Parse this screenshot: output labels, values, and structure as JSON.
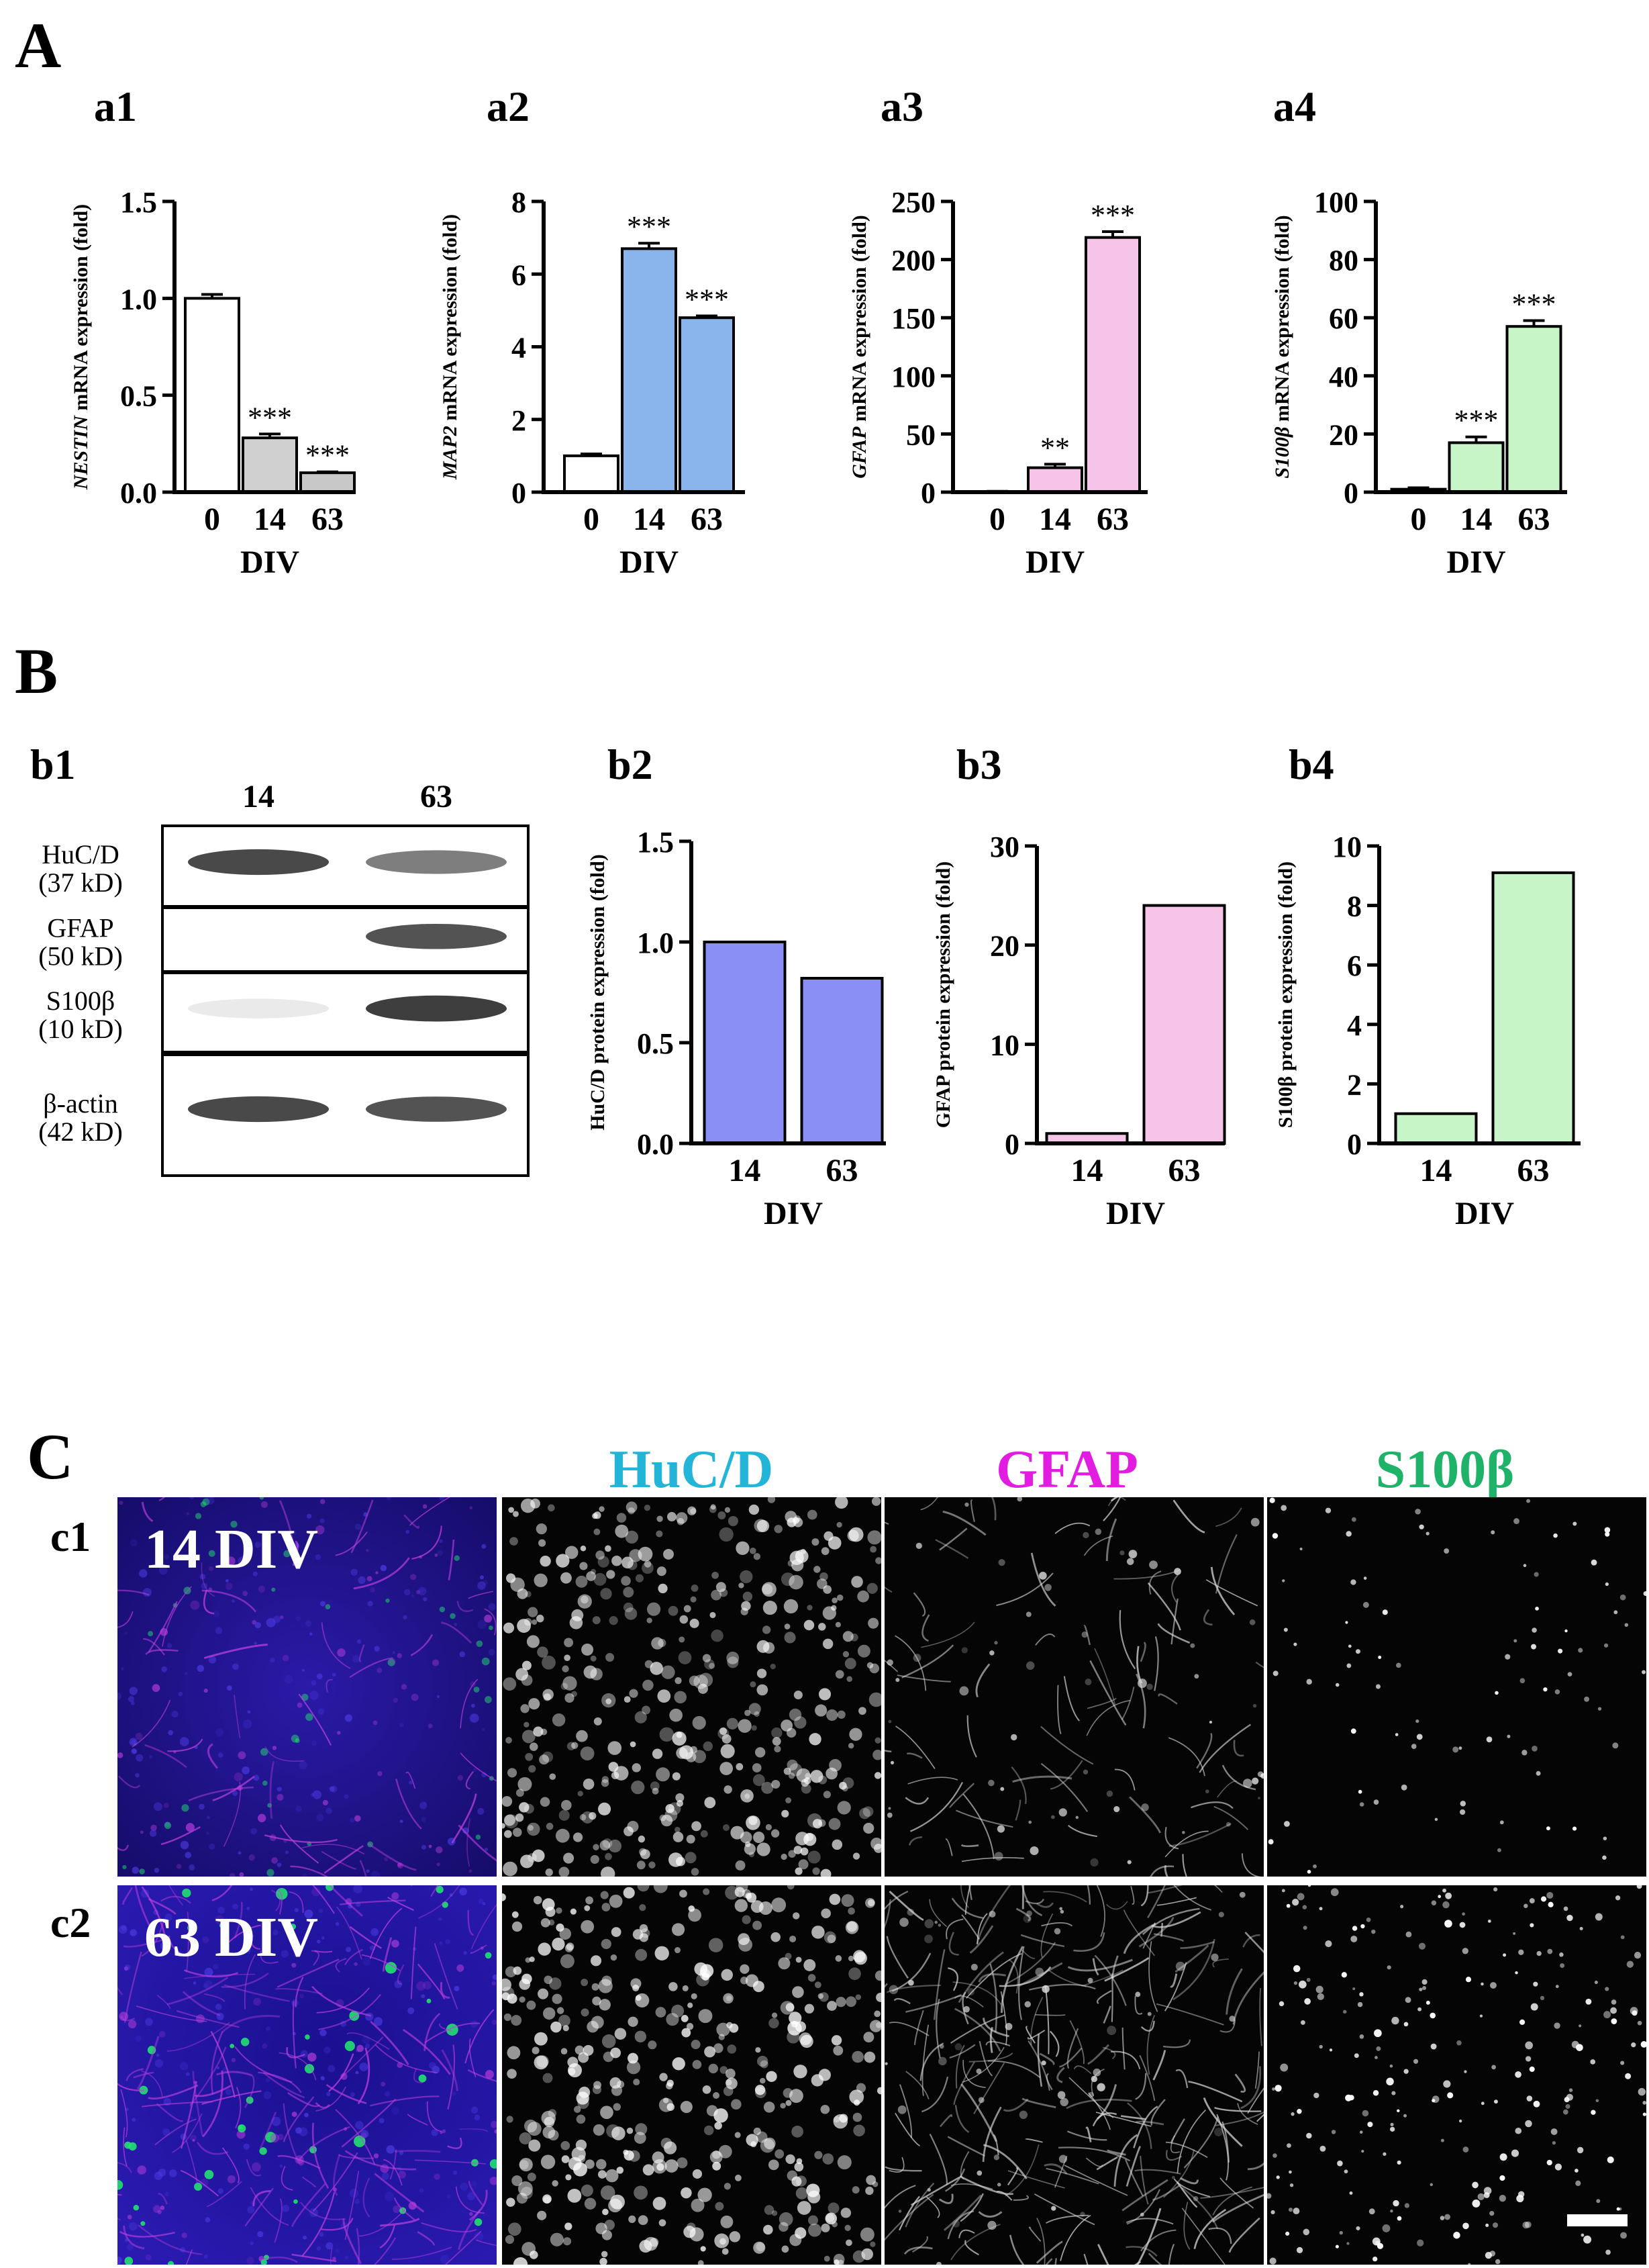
{
  "panels": {
    "A": "A",
    "B": "B",
    "C": "C",
    "a1": "a1",
    "a2": "a2",
    "a3": "a3",
    "a4": "a4",
    "b1": "b1",
    "b2": "b2",
    "b3": "b3",
    "b4": "b4",
    "c1": "c1",
    "c2": "c2"
  },
  "chart_data": [
    {
      "id": "a1",
      "type": "bar",
      "categories": [
        "0",
        "14",
        "63"
      ],
      "values": [
        1.0,
        0.28,
        0.1
      ],
      "errors": [
        0.02,
        0.02,
        0.005
      ],
      "sig": [
        "",
        "***",
        "***"
      ],
      "colors": [
        "#ffffff",
        "#d0d0d0",
        "#c8c8c8"
      ],
      "ylabel_italic": "NESTIN",
      "ylabel": " mRNA expression (fold)",
      "xlabel": "DIV",
      "ylim": [
        0,
        1.5
      ],
      "ytick_labels": [
        "0.0",
        "0.5",
        "1.0",
        "1.5"
      ],
      "yticks": [
        0,
        0.5,
        1.0,
        1.5
      ],
      "error_bars": true
    },
    {
      "id": "a2",
      "type": "bar",
      "categories": [
        "0",
        "14",
        "63"
      ],
      "values": [
        1.0,
        6.7,
        4.8
      ],
      "errors": [
        0.05,
        0.15,
        0.05
      ],
      "sig": [
        "",
        "***",
        "***"
      ],
      "colors": [
        "#ffffff",
        "#8ab4ec",
        "#8ab4ec"
      ],
      "ylabel_italic": "MAP2",
      "ylabel": " mRNA expression (fold)",
      "xlabel": "DIV",
      "ylim": [
        0,
        8
      ],
      "ytick_labels": [
        "0",
        "2",
        "4",
        "6",
        "8"
      ],
      "yticks": [
        0,
        2,
        4,
        6,
        8
      ],
      "error_bars": true
    },
    {
      "id": "a3",
      "type": "bar",
      "categories": [
        "0",
        "14",
        "63"
      ],
      "values": [
        0.5,
        21,
        219
      ],
      "errors": [
        0.2,
        3,
        5
      ],
      "sig": [
        "",
        "**",
        "***"
      ],
      "colors": [
        "#ffffff",
        "#f6c4e8",
        "#f6c4e8"
      ],
      "ylabel_italic": "GFAP",
      "ylabel": " mRNA expression (fold)",
      "xlabel": "DIV",
      "ylim": [
        0,
        250
      ],
      "ytick_labels": [
        "0",
        "50",
        "100",
        "150",
        "200",
        "250"
      ],
      "yticks": [
        0,
        50,
        100,
        150,
        200,
        250
      ],
      "error_bars": true
    },
    {
      "id": "a4",
      "type": "bar",
      "categories": [
        "0",
        "14",
        "63"
      ],
      "values": [
        1.0,
        17,
        57
      ],
      "errors": [
        0.5,
        2,
        2
      ],
      "sig": [
        "",
        "***",
        "***"
      ],
      "colors": [
        "#ffffff",
        "#c8f5c8",
        "#c8f5c8"
      ],
      "ylabel_italic": "S100β",
      "ylabel": " mRNA expression (fold)",
      "xlabel": "DIV",
      "ylim": [
        0,
        100
      ],
      "ytick_labels": [
        "0",
        "20",
        "40",
        "60",
        "80",
        "100"
      ],
      "yticks": [
        0,
        20,
        40,
        60,
        80,
        100
      ],
      "error_bars": true
    },
    {
      "id": "b2",
      "type": "bar",
      "categories": [
        "14",
        "63"
      ],
      "values": [
        1.0,
        0.82
      ],
      "colors": [
        "#8a8ff5",
        "#8a8ff5"
      ],
      "ylabel_italic": "",
      "ylabel": "HuC/D protein expression (fold)",
      "xlabel": "DIV",
      "ylim": [
        0,
        1.5
      ],
      "ytick_labels": [
        "0.0",
        "0.5",
        "1.0",
        "1.5"
      ],
      "yticks": [
        0,
        0.5,
        1.0,
        1.5
      ],
      "error_bars": false
    },
    {
      "id": "b3",
      "type": "bar",
      "categories": [
        "14",
        "63"
      ],
      "values": [
        1.0,
        24
      ],
      "colors": [
        "#f6c4e8",
        "#f6c4e8"
      ],
      "ylabel_italic": "",
      "ylabel": "GFAP protein expression (fold)",
      "xlabel": "DIV",
      "ylim": [
        0,
        30
      ],
      "ytick_labels": [
        "0",
        "10",
        "20",
        "30"
      ],
      "yticks": [
        0,
        10,
        20,
        30
      ],
      "error_bars": false
    },
    {
      "id": "b4",
      "type": "bar",
      "categories": [
        "14",
        "63"
      ],
      "values": [
        1.0,
        9.1
      ],
      "colors": [
        "#c8f5c8",
        "#c8f5c8"
      ],
      "ylabel_italic": "",
      "ylabel": "S100β protein expression (fold)",
      "xlabel": "DIV",
      "ylim": [
        0,
        10
      ],
      "ytick_labels": [
        "0",
        "2",
        "4",
        "6",
        "8",
        "10"
      ],
      "yticks": [
        0,
        2,
        4,
        6,
        8,
        10
      ],
      "error_bars": false
    }
  ],
  "blot": {
    "lanes": [
      "14",
      "63"
    ],
    "rows": [
      {
        "name": "HuC/D",
        "size": "(37 kD)",
        "intensity": [
          0.85,
          0.6
        ]
      },
      {
        "name": "GFAP",
        "size": "(50 kD)",
        "intensity": [
          0.0,
          0.8
        ]
      },
      {
        "name": "S100β",
        "size": "(10 kD)",
        "intensity": [
          0.1,
          0.9
        ]
      },
      {
        "name": "β-actin",
        "size": "(42 kD)",
        "intensity": [
          0.85,
          0.8
        ]
      }
    ]
  },
  "micrographs": {
    "columns": [
      {
        "label": "HuC/D",
        "color": "#22b5d8"
      },
      {
        "label": "GFAP",
        "color": "#e21ce0"
      },
      {
        "label": "S100β",
        "color": "#1fb36a"
      }
    ],
    "rows": [
      {
        "label": "14 DIV"
      },
      {
        "label": "63 DIV"
      }
    ]
  }
}
